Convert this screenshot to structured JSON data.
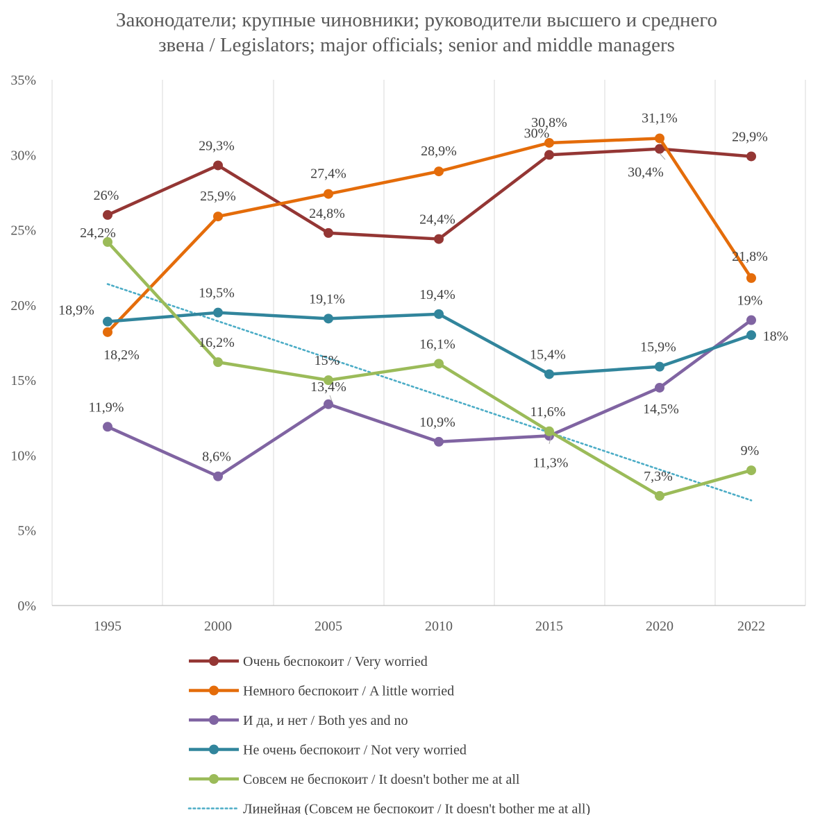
{
  "chart_data": {
    "type": "line",
    "title_line1": "Законодатели; крупные чиновники; руководители высшего и среднего",
    "title_line2": "звена / Legislators; major officials; senior and middle managers",
    "categories": [
      "1995",
      "2000",
      "2005",
      "2010",
      "2015",
      "2020",
      "2022"
    ],
    "ylim": [
      0,
      35
    ],
    "yticks": [
      0,
      5,
      10,
      15,
      20,
      25,
      30,
      35
    ],
    "ytick_labels": [
      "0%",
      "5%",
      "10%",
      "15%",
      "20%",
      "25%",
      "30%",
      "35%"
    ],
    "grid": "vertical",
    "legend_position": "bottom",
    "series": [
      {
        "name": "Очень беспокоит / Very worried",
        "color": "#943634",
        "values": [
          26,
          29.3,
          24.8,
          24.4,
          30,
          30.4,
          29.9
        ],
        "labels": [
          "26%",
          "29,3%",
          "24,8%",
          "24,4%",
          "30%",
          "30,4%",
          "29,9%"
        ]
      },
      {
        "name": "Немного беспокоит / A little worried",
        "color": "#E46C0A",
        "values": [
          18.2,
          25.9,
          27.4,
          28.9,
          30.8,
          31.1,
          21.8
        ],
        "labels": [
          "18,2%",
          "25,9%",
          "27,4%",
          "28,9%",
          "30,8%",
          "31,1%",
          "21,8%"
        ]
      },
      {
        "name": "И да, и нет / Both yes and no",
        "color": "#8064A2",
        "values": [
          11.9,
          8.6,
          13.4,
          10.9,
          11.3,
          14.5,
          19
        ],
        "labels": [
          "11,9%",
          "8,6%",
          "13,4%",
          "10,9%",
          "11,3%",
          "14,5%",
          "19%"
        ]
      },
      {
        "name": "Не очень беспокоит / Not very worried",
        "color": "#31859C",
        "values": [
          18.9,
          19.5,
          19.1,
          19.4,
          15.4,
          15.9,
          18
        ],
        "labels": [
          "18,9%",
          "19,5%",
          "19,1%",
          "19,4%",
          "15,4%",
          "15,9%",
          "18%"
        ]
      },
      {
        "name": "Совсем не беспокоит / It doesn't bother me at all",
        "color": "#9BBB59",
        "values": [
          24.2,
          16.2,
          15,
          16.1,
          11.6,
          7.3,
          9
        ],
        "labels": [
          "24,2%",
          "16,2%",
          "15%",
          "16,1%",
          "11,6%",
          "7,3%",
          "9%"
        ]
      }
    ],
    "trendline": {
      "name": "Линейная (Совсем не беспокоит / It doesn't bother me at all)",
      "color": "#4BACC6",
      "start": 21.4,
      "end": 7.0
    }
  }
}
